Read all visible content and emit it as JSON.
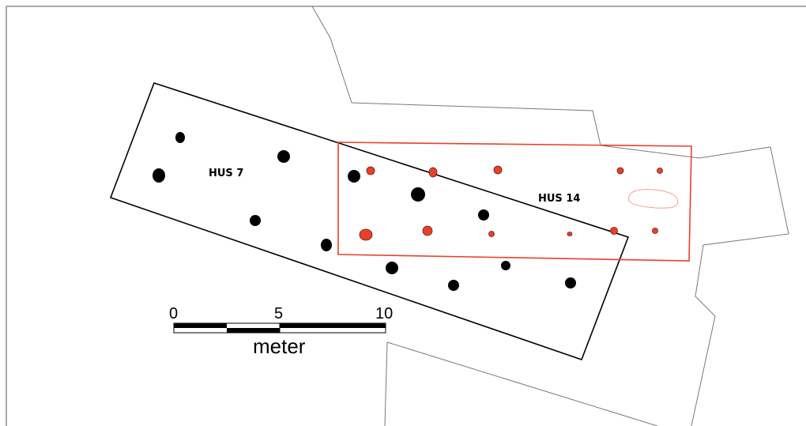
{
  "houses": {
    "hus7": {
      "label": "HUS 7",
      "color": "#000000"
    },
    "hus14": {
      "label": "HUS 14",
      "color": "#e8412a"
    }
  },
  "scale_bar": {
    "ticks": [
      "0",
      "5",
      "10"
    ],
    "unit": "meter"
  },
  "colors": {
    "background": "#ffffff",
    "excavation_outline": "#7a7a7a",
    "hus7_postholes": "#000000",
    "hus14_postholes": "#e8412a",
    "hus14_pit_outline": "#f0a090"
  }
}
